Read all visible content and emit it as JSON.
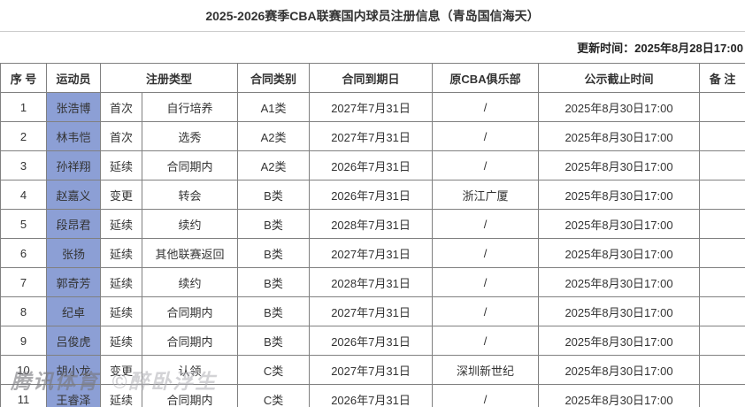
{
  "title": "2025-2026赛季CBA联赛国内球员注册信息（青岛国信海天）",
  "update_time": "更新时间：2025年8月28日17:00",
  "watermark": {
    "brand": "腾讯体育",
    "author": "©醉卧浮生"
  },
  "colors": {
    "name_cell_bg": "#8C9FD5",
    "border": "#808080",
    "divider": "#cccccc"
  },
  "table": {
    "headers": [
      "序 号",
      "运动员",
      "注册类型",
      "合同类别",
      "合同到期日",
      "原CBA俱乐部",
      "公示截止时间",
      "备 注"
    ],
    "rows": [
      {
        "no": "1",
        "name": "张浩博",
        "reg_type": "首次",
        "reg_detail": "自行培养",
        "contract_class": "A1类",
        "contract_end": "2027年7月31日",
        "former_club": "/",
        "deadline": "2025年8月30日17:00",
        "remark": ""
      },
      {
        "no": "2",
        "name": "林韦恺",
        "reg_type": "首次",
        "reg_detail": "选秀",
        "contract_class": "A2类",
        "contract_end": "2027年7月31日",
        "former_club": "/",
        "deadline": "2025年8月30日17:00",
        "remark": ""
      },
      {
        "no": "3",
        "name": "孙祥翔",
        "reg_type": "延续",
        "reg_detail": "合同期内",
        "contract_class": "A2类",
        "contract_end": "2026年7月31日",
        "former_club": "/",
        "deadline": "2025年8月30日17:00",
        "remark": ""
      },
      {
        "no": "4",
        "name": "赵嘉义",
        "reg_type": "变更",
        "reg_detail": "转会",
        "contract_class": "B类",
        "contract_end": "2026年7月31日",
        "former_club": "浙江广厦",
        "deadline": "2025年8月30日17:00",
        "remark": ""
      },
      {
        "no": "5",
        "name": "段昂君",
        "reg_type": "延续",
        "reg_detail": "续约",
        "contract_class": "B类",
        "contract_end": "2028年7月31日",
        "former_club": "/",
        "deadline": "2025年8月30日17:00",
        "remark": ""
      },
      {
        "no": "6",
        "name": "张扬",
        "reg_type": "延续",
        "reg_detail": "其他联赛返回",
        "contract_class": "B类",
        "contract_end": "2027年7月31日",
        "former_club": "/",
        "deadline": "2025年8月30日17:00",
        "remark": ""
      },
      {
        "no": "7",
        "name": "郭奇芳",
        "reg_type": "延续",
        "reg_detail": "续约",
        "contract_class": "B类",
        "contract_end": "2028年7月31日",
        "former_club": "/",
        "deadline": "2025年8月30日17:00",
        "remark": ""
      },
      {
        "no": "8",
        "name": "纪卓",
        "reg_type": "延续",
        "reg_detail": "合同期内",
        "contract_class": "B类",
        "contract_end": "2027年7月31日",
        "former_club": "/",
        "deadline": "2025年8月30日17:00",
        "remark": ""
      },
      {
        "no": "9",
        "name": "吕俊虎",
        "reg_type": "延续",
        "reg_detail": "合同期内",
        "contract_class": "B类",
        "contract_end": "2026年7月31日",
        "former_club": "/",
        "deadline": "2025年8月30日17:00",
        "remark": ""
      },
      {
        "no": "10",
        "name": "胡小龙",
        "reg_type": "变更",
        "reg_detail": "认领",
        "contract_class": "C类",
        "contract_end": "2027年7月31日",
        "former_club": "深圳新世纪",
        "deadline": "2025年8月30日17:00",
        "remark": ""
      },
      {
        "no": "11",
        "name": "王睿泽",
        "reg_type": "延续",
        "reg_detail": "合同期内",
        "contract_class": "C类",
        "contract_end": "2026年7月31日",
        "former_club": "/",
        "deadline": "2025年8月30日17:00",
        "remark": ""
      }
    ]
  }
}
